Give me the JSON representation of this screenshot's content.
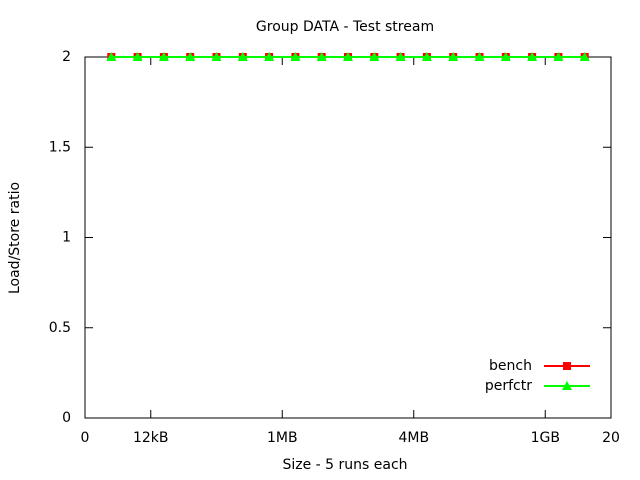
{
  "chart_data": {
    "type": "line",
    "title": "Group DATA - Test stream",
    "xlabel": "Size - 5 runs each",
    "ylabel": "Load/Store ratio",
    "x": [
      1,
      2,
      3,
      4,
      5,
      6,
      7,
      8,
      9,
      10,
      11,
      12,
      13,
      14,
      15,
      16,
      17,
      18,
      19
    ],
    "series": [
      {
        "name": "bench",
        "color": "#ff0000",
        "marker": "square",
        "values": [
          2,
          2,
          2,
          2,
          2,
          2,
          2,
          2,
          2,
          2,
          2,
          2,
          2,
          2,
          2,
          2,
          2,
          2,
          2
        ]
      },
      {
        "name": "perfctr",
        "color": "#00ff00",
        "marker": "triangle",
        "values": [
          2,
          2,
          2,
          2,
          2,
          2,
          2,
          2,
          2,
          2,
          2,
          2,
          2,
          2,
          2,
          2,
          2,
          2,
          2
        ]
      }
    ],
    "xlim": [
      0,
      20
    ],
    "xticks": [
      0,
      {
        "value": 2.5,
        "label": "12kB"
      },
      {
        "value": 7.5,
        "label": "1MB"
      },
      {
        "value": 12.5,
        "label": "4MB"
      },
      {
        "value": 17.5,
        "label": "1GB"
      },
      20
    ],
    "ylim": [
      0,
      2
    ],
    "yticks": [
      0,
      0.5,
      1,
      1.5,
      2
    ],
    "grid": false,
    "legend": "bottom-right"
  }
}
